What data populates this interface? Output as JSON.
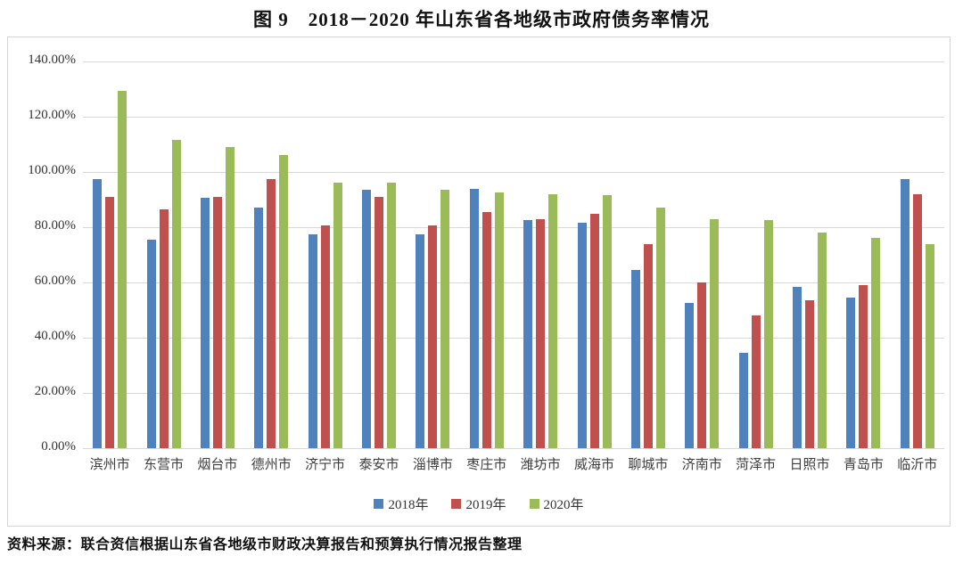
{
  "title": "图 9　2018－2020 年山东省各地级市政府债务率情况",
  "source": "资料来源：联合资信根据山东省各地级市财政决算报告和预算执行情况报告整理",
  "colors": {
    "series_2018": "#4F81BD",
    "series_2019": "#C0504D",
    "series_2020": "#9BBB59",
    "gridline": "#D9D9D9",
    "plot_border": "#D6D6D6",
    "axis_text": "#333333"
  },
  "chart_data": {
    "type": "bar",
    "title": "图 9　2018－2020 年山东省各地级市政府债务率情况",
    "xlabel": "",
    "ylabel": "",
    "ylim": [
      0,
      140
    ],
    "ytick_step": 20,
    "ytick_labels": [
      "0.00%",
      "20.00%",
      "40.00%",
      "60.00%",
      "80.00%",
      "100.00%",
      "120.00%",
      "140.00%"
    ],
    "grid": true,
    "legend_position": "bottom",
    "categories": [
      "滨州市",
      "东营市",
      "烟台市",
      "德州市",
      "济宁市",
      "泰安市",
      "淄博市",
      "枣庄市",
      "潍坊市",
      "威海市",
      "聊城市",
      "济南市",
      "菏泽市",
      "日照市",
      "青岛市",
      "临沂市"
    ],
    "series": [
      {
        "name": "2018年",
        "color": "#4F81BD",
        "values": [
          97.5,
          75.5,
          90.5,
          87,
          77.5,
          93.5,
          77.5,
          94,
          82.5,
          81.5,
          64.5,
          52.5,
          34.5,
          58.5,
          54.5,
          97.5
        ]
      },
      {
        "name": "2019年",
        "color": "#C0504D",
        "values": [
          91,
          86.5,
          91,
          97.5,
          80.5,
          91,
          80.5,
          85.5,
          83,
          85,
          74,
          60,
          48,
          53.5,
          59,
          92
        ]
      },
      {
        "name": "2020年",
        "color": "#9BBB59",
        "values": [
          129.5,
          111.5,
          109,
          106,
          96,
          96,
          93.5,
          92.5,
          92,
          91.5,
          87,
          83,
          82.5,
          78,
          76,
          74
        ]
      }
    ]
  }
}
